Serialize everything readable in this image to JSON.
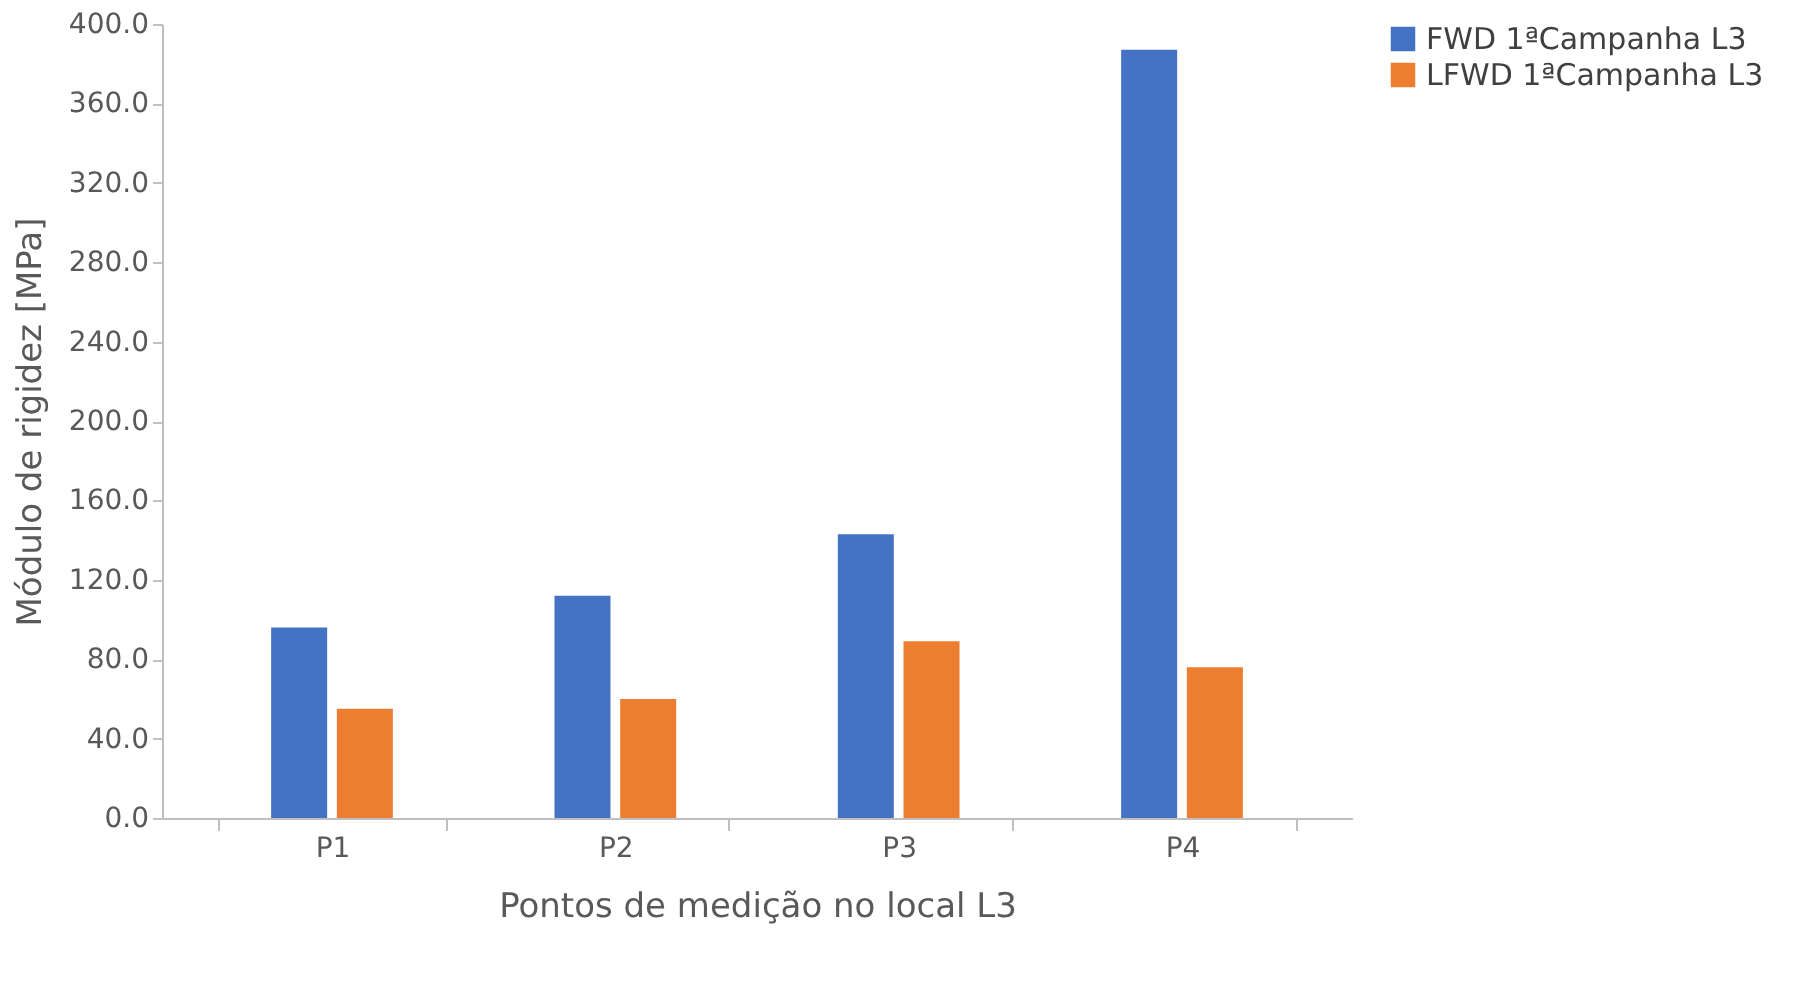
{
  "chart_data": {
    "type": "bar",
    "xlabel": "Pontos de medição no local L3",
    "ylabel": "Módulo de rigidez [MPa]",
    "categories": [
      "P1",
      "P2",
      "P3",
      "P4"
    ],
    "series": [
      {
        "name": "FWD 1ªCampanha L3",
        "color": "#4472c4",
        "values": [
          96,
          112,
          143,
          387
        ]
      },
      {
        "name": "LFWD 1ªCampanha L3",
        "color": "#ed7d31",
        "values": [
          55,
          60,
          89,
          76
        ]
      }
    ],
    "ylim": [
      0,
      400
    ],
    "yticks": [
      {
        "value": 0,
        "label": "0.0"
      },
      {
        "value": 40,
        "label": "40.0"
      },
      {
        "value": 80,
        "label": "80.0"
      },
      {
        "value": 120,
        "label": "120.0"
      },
      {
        "value": 160,
        "label": "160.0"
      },
      {
        "value": 200,
        "label": "200.0"
      },
      {
        "value": 240,
        "label": "240.0"
      },
      {
        "value": 280,
        "label": "280.0"
      },
      {
        "value": 320,
        "label": "320.0"
      },
      {
        "value": 360,
        "label": "360.0"
      },
      {
        "value": 400,
        "label": "400.0"
      }
    ],
    "grid": false,
    "legend": "right"
  }
}
